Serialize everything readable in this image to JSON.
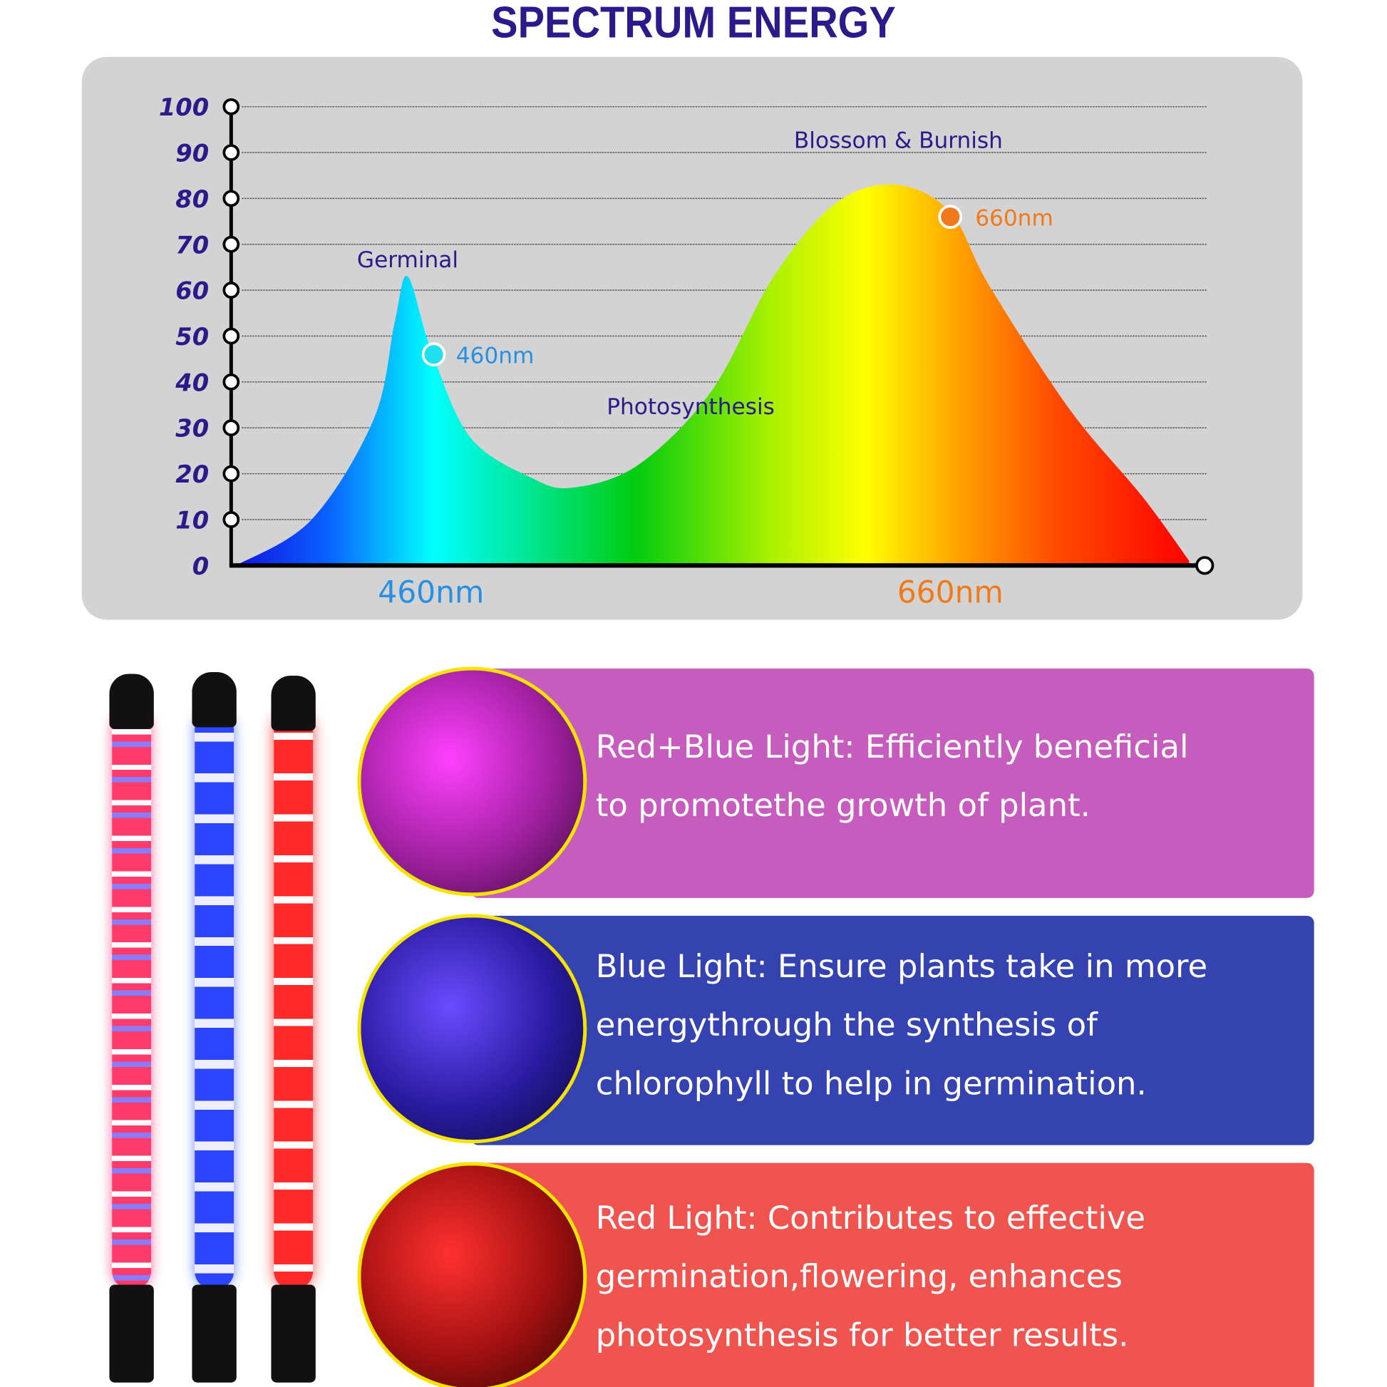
{
  "title": "SPECTRUM ENERGY",
  "chart_data": {
    "type": "area",
    "title": "SPECTRUM ENERGY",
    "xlabel": "",
    "ylabel": "",
    "ylim": [
      0,
      100
    ],
    "yticks": [
      "0",
      "10",
      "20",
      "30",
      "40",
      "50",
      "60",
      "70",
      "80",
      "90",
      "100"
    ],
    "xticks": [
      {
        "label": "460nm",
        "x": 460
      },
      {
        "label": "660nm",
        "x": 660
      }
    ],
    "xlim": [
      383,
      758
    ],
    "grid": true,
    "x": [
      385,
      414,
      438,
      446,
      451,
      460,
      475,
      499,
      515,
      540,
      568,
      592,
      616,
      639,
      660,
      675,
      706,
      734,
      752
    ],
    "values": [
      0,
      10,
      32,
      53,
      63,
      47,
      28,
      19,
      17,
      22,
      38,
      63,
      79,
      83,
      77,
      61,
      34,
      15,
      1
    ],
    "annotations": [
      {
        "text": "Germinal",
        "x": 451,
        "y": 65
      },
      {
        "text": "Photosynthesis",
        "x": 560,
        "y": 33
      },
      {
        "text": "Blossom & Burnish",
        "x": 640,
        "y": 91
      },
      {
        "text": "460nm",
        "x": 460,
        "y": 46,
        "marker": true,
        "color": "#2a8fe0"
      },
      {
        "text": "660nm",
        "x": 660,
        "y": 76,
        "marker": true,
        "color": "#f07a1a"
      }
    ],
    "colors": {
      "label": "#2a1a8a",
      "x460": "#2a8fe0",
      "x660": "#f07a1a",
      "panel": "#d3d3d3"
    }
  },
  "panels": [
    {
      "text_lines": [
        "Red+Blue Light: Efficiently beneficial",
        "to promotethe growth of plant."
      ],
      "color": "#c75cbf"
    },
    {
      "text_lines": [
        "Blue Light: Ensure plants take in more",
        "energythrough the synthesis of",
        "chlorophyll to help in germination."
      ],
      "color": "#3443b0"
    },
    {
      "text_lines": [
        "Red Light: Contributes to effective",
        "germination,flowering, enhances",
        "photosynthesis for better results."
      ],
      "color": "#f0544e"
    }
  ]
}
